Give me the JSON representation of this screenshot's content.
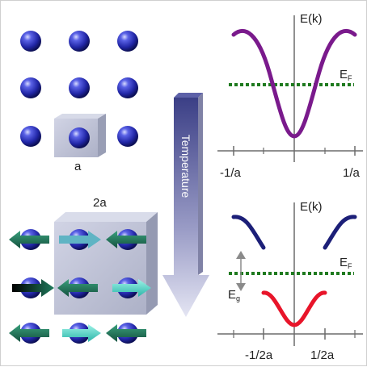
{
  "labels": {
    "lattice_a": "a",
    "lattice_2a": "2a",
    "temperature": "Temperature",
    "energy_top": "E(k)",
    "energy_bottom": "E(k)",
    "fermi_top_main": "E",
    "fermi_top_sub": "F",
    "fermi_bottom_main": "E",
    "fermi_bottom_sub": "F",
    "gap_main": "E",
    "gap_sub": "g",
    "tick_top_left": "-1/a",
    "tick_top_right": "1/a",
    "tick_bottom_left": "-1/2a",
    "tick_bottom_right": "1/2a"
  },
  "colors": {
    "atom": "#2b2fb8",
    "cell_box": "#a8adc4",
    "arrow_dark": "#1e6e55",
    "arrow_light": "#44d6c6",
    "temperature_arrow": "#6d6f9a",
    "band_metal": "#7a1a8c",
    "band_upper": "#1c1f78",
    "band_lower": "#e8152a",
    "fermi_line": "#1f7a1f"
  }
}
